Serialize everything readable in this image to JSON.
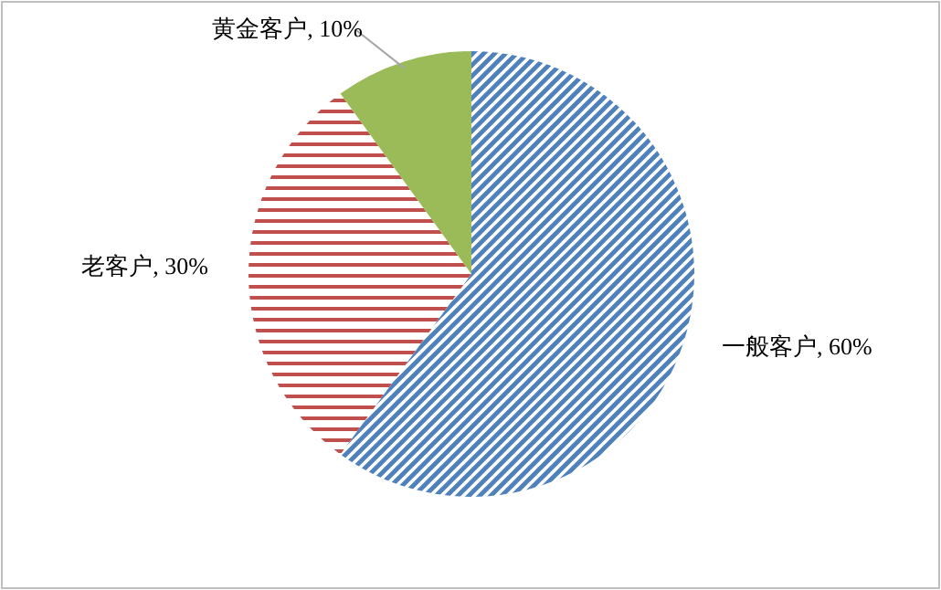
{
  "chart_data": {
    "type": "pie",
    "categories": [
      "一般客户",
      "老客户",
      "黄金客户"
    ],
    "values": [
      60,
      30,
      10
    ],
    "value_labels": [
      "60%",
      "30%",
      "10%"
    ],
    "colors": [
      "#4f81bd",
      "#c0504d",
      "#9bbb59"
    ],
    "legend": false
  }
}
